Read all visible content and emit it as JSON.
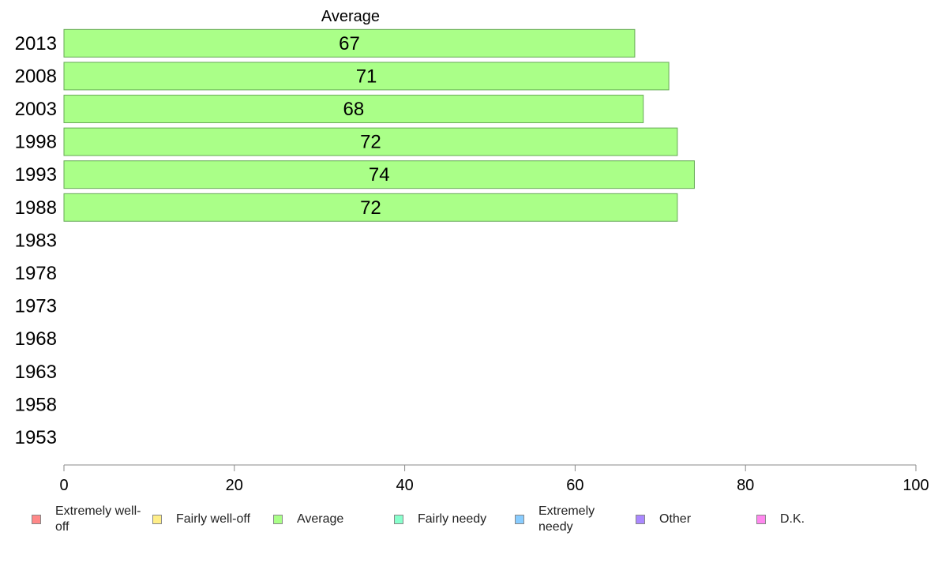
{
  "chart_data": {
    "type": "bar",
    "orientation": "horizontal",
    "title": "Average",
    "categories": [
      "2013",
      "2008",
      "2003",
      "1998",
      "1993",
      "1988",
      "1983",
      "1978",
      "1973",
      "1968",
      "1963",
      "1958",
      "1953"
    ],
    "series": [
      {
        "name": "Average",
        "color": "#aaff88",
        "values": [
          67,
          71,
          68,
          72,
          74,
          72,
          null,
          null,
          null,
          null,
          null,
          null,
          null
        ]
      }
    ],
    "data_labels": [
      "67",
      "71",
      "68",
      "72",
      "74",
      "72",
      "",
      "",
      "",
      "",
      "",
      "",
      ""
    ],
    "xlim": [
      0,
      100
    ],
    "xticks": [
      "0",
      "20",
      "40",
      "60",
      "80",
      "100"
    ],
    "grid": false,
    "legend_position": "bottom"
  },
  "legend": {
    "items": [
      {
        "label": "Extremely well-off",
        "color": "#ff8888"
      },
      {
        "label": "Fairly well-off",
        "color": "#ffee88"
      },
      {
        "label": "Average",
        "color": "#aaff88"
      },
      {
        "label": "Fairly needy",
        "color": "#88ffcc"
      },
      {
        "label": "Extremely needy",
        "color": "#88ccff"
      },
      {
        "label": "Other",
        "color": "#aa88ff"
      },
      {
        "label": "D.K.",
        "color": "#ff88ee"
      }
    ]
  }
}
